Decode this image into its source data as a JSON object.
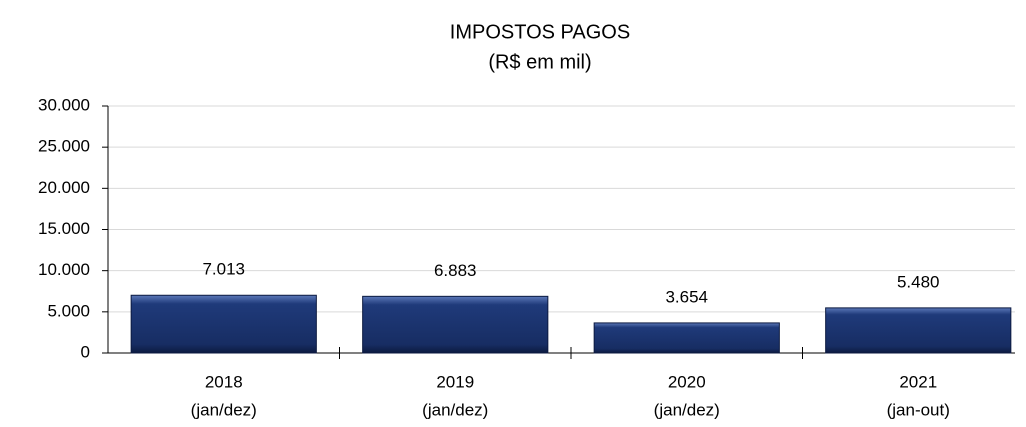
{
  "chart_data": {
    "type": "bar",
    "title": "IMPOSTOS PAGOS",
    "subtitle": "(R$ em mil)",
    "categories": [
      [
        "2018",
        "(jan/dez)"
      ],
      [
        "2019",
        "(jan/dez)"
      ],
      [
        "2020",
        "(jan/dez)"
      ],
      [
        "2021",
        "(jan-out)"
      ]
    ],
    "values": [
      7013,
      6883,
      3654,
      5480
    ],
    "value_labels": [
      "7.013",
      "6.883",
      "3.654",
      "5.480"
    ],
    "color": "#1f3a7a",
    "ylim": [
      0,
      30000
    ],
    "yticks": [
      0,
      {
        "value": 5000,
        "label": "5.000"
      },
      {
        "value": 10000,
        "label": "10.000"
      },
      {
        "value": 15000,
        "label": "15.000"
      },
      {
        "value": 20000,
        "label": "20.000"
      },
      {
        "value": 25000,
        "label": "25.000"
      },
      {
        "value": 30000,
        "label": "30.000"
      }
    ],
    "grid": true
  }
}
